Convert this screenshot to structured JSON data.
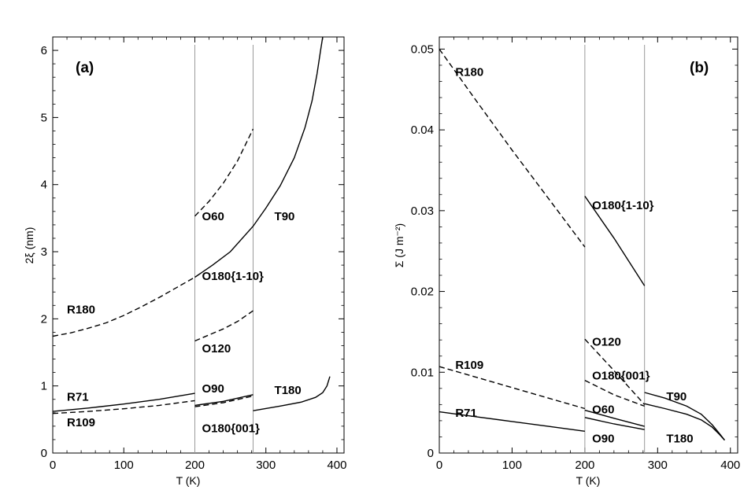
{
  "chart_data": [
    {
      "type": "line",
      "panel": "(a)",
      "xlabel": "T (K)",
      "ylabel": "2ξ (nm)",
      "xlim": [
        0,
        410
      ],
      "ylim": [
        0,
        6.2
      ],
      "xticks": [
        0,
        100,
        200,
        300,
        400
      ],
      "yticks": [
        0,
        1,
        2,
        3,
        4,
        5,
        6
      ],
      "vlines": [
        200,
        282
      ],
      "series": [
        {
          "name": "R180",
          "style": "dashed",
          "x": [
            0,
            25,
            50,
            75,
            100,
            125,
            150,
            175,
            200
          ],
          "y": [
            1.74,
            1.79,
            1.86,
            1.94,
            2.05,
            2.18,
            2.32,
            2.47,
            2.62
          ]
        },
        {
          "name": "T90",
          "style": "solid",
          "x": [
            200,
            225,
            250,
            282,
            300,
            320,
            340,
            355,
            365,
            372,
            377,
            380
          ],
          "y": [
            2.62,
            2.8,
            3.0,
            3.38,
            3.65,
            3.98,
            4.4,
            4.85,
            5.25,
            5.65,
            6.0,
            6.22
          ]
        },
        {
          "name": "O60",
          "style": "dashed",
          "x": [
            200,
            220,
            240,
            260,
            282
          ],
          "y": [
            3.53,
            3.75,
            4.02,
            4.35,
            4.83
          ]
        },
        {
          "name": "O120",
          "style": "dashed",
          "x": [
            200,
            220,
            240,
            260,
            282
          ],
          "y": [
            1.67,
            1.76,
            1.85,
            1.96,
            2.12
          ]
        },
        {
          "name": "R71",
          "style": "solid",
          "x": [
            0,
            50,
            100,
            150,
            200
          ],
          "y": [
            0.62,
            0.67,
            0.73,
            0.8,
            0.89
          ]
        },
        {
          "name": "R109",
          "style": "dashed",
          "x": [
            0,
            50,
            100,
            150,
            200
          ],
          "y": [
            0.59,
            0.62,
            0.66,
            0.71,
            0.78
          ]
        },
        {
          "name": "O90",
          "style": "solid",
          "x": [
            200,
            240,
            282
          ],
          "y": [
            0.71,
            0.77,
            0.87
          ]
        },
        {
          "name": "O180{001}",
          "style": "dashed",
          "x": [
            200,
            240,
            282
          ],
          "y": [
            0.69,
            0.75,
            0.85
          ]
        },
        {
          "name": "T180",
          "style": "solid",
          "x": [
            282,
            320,
            350,
            370,
            380,
            386,
            390
          ],
          "y": [
            0.63,
            0.7,
            0.76,
            0.83,
            0.9,
            1.0,
            1.14
          ]
        }
      ],
      "labels": [
        {
          "text": "R180",
          "x": 20,
          "y": 2.08
        },
        {
          "text": "O60",
          "x": 210,
          "y": 3.47
        },
        {
          "text": "T90",
          "x": 312,
          "y": 3.47
        },
        {
          "text": "O180{1-10}",
          "x": 210,
          "y": 2.58
        },
        {
          "text": "O120",
          "x": 210,
          "y": 1.5
        },
        {
          "text": "R71",
          "x": 20,
          "y": 0.78
        },
        {
          "text": "O90",
          "x": 210,
          "y": 0.9
        },
        {
          "text": "T180",
          "x": 312,
          "y": 0.88
        },
        {
          "text": "R109",
          "x": 20,
          "y": 0.4
        },
        {
          "text": "O180{001}",
          "x": 210,
          "y": 0.31
        }
      ]
    },
    {
      "type": "line",
      "panel": "(b)",
      "xlabel": "T (K)",
      "ylabel": "Σ (J m⁻²)",
      "xlim": [
        0,
        410
      ],
      "ylim": [
        0,
        0.0515
      ],
      "xticks": [
        0,
        100,
        200,
        300,
        400
      ],
      "yticks": [
        0,
        0.01,
        0.02,
        0.03,
        0.04,
        0.05
      ],
      "vlines": [
        200,
        282
      ],
      "series": [
        {
          "name": "R180",
          "style": "dashed",
          "x": [
            0,
            50,
            100,
            150,
            200
          ],
          "y": [
            0.05,
            0.0437,
            0.0375,
            0.0315,
            0.0255
          ]
        },
        {
          "name": "O180{1-10}",
          "style": "solid",
          "x": [
            200,
            240,
            282
          ],
          "y": [
            0.0318,
            0.0266,
            0.0207
          ]
        },
        {
          "name": "O120",
          "style": "dashed",
          "x": [
            200,
            240,
            282
          ],
          "y": [
            0.0141,
            0.0102,
            0.006
          ]
        },
        {
          "name": "R109",
          "style": "dashed",
          "x": [
            0,
            50,
            100,
            150,
            200
          ],
          "y": [
            0.0107,
            0.0094,
            0.0081,
            0.0068,
            0.0055
          ]
        },
        {
          "name": "O180{001}",
          "style": "dashed",
          "x": [
            200,
            240,
            282
          ],
          "y": [
            0.009,
            0.0072,
            0.0058
          ]
        },
        {
          "name": "O60",
          "style": "solid",
          "x": [
            200,
            240,
            282
          ],
          "y": [
            0.0053,
            0.0043,
            0.0033
          ]
        },
        {
          "name": "O90",
          "style": "solid",
          "x": [
            200,
            240,
            282
          ],
          "y": [
            0.0044,
            0.0036,
            0.0029
          ]
        },
        {
          "name": "R71",
          "style": "solid",
          "x": [
            0,
            50,
            100,
            150,
            200
          ],
          "y": [
            0.0051,
            0.0045,
            0.0039,
            0.0033,
            0.0027
          ]
        },
        {
          "name": "T90",
          "style": "solid",
          "x": [
            282,
            310,
            340,
            360,
            375,
            385,
            392
          ],
          "y": [
            0.0075,
            0.0068,
            0.0058,
            0.0048,
            0.0035,
            0.0024,
            0.0016
          ]
        },
        {
          "name": "T180",
          "style": "solid",
          "x": [
            282,
            310,
            340,
            360,
            375,
            385,
            392
          ],
          "y": [
            0.0061,
            0.0055,
            0.0048,
            0.0041,
            0.0032,
            0.0023,
            0.0016
          ]
        }
      ],
      "labels": [
        {
          "text": "R180",
          "x": 22,
          "y": 0.0467
        },
        {
          "text": "O180{1-10}",
          "x": 210,
          "y": 0.0302
        },
        {
          "text": "O120",
          "x": 210,
          "y": 0.0133
        },
        {
          "text": "R109",
          "x": 22,
          "y": 0.0104
        },
        {
          "text": "O180{001}",
          "x": 210,
          "y": 0.0091
        },
        {
          "text": "T90",
          "x": 312,
          "y": 0.0065
        },
        {
          "text": "O60",
          "x": 210,
          "y": 0.0049
        },
        {
          "text": "R71",
          "x": 22,
          "y": 0.0045
        },
        {
          "text": "T180",
          "x": 312,
          "y": 0.0013
        },
        {
          "text": "O90",
          "x": 210,
          "y": 0.0013
        }
      ]
    }
  ]
}
